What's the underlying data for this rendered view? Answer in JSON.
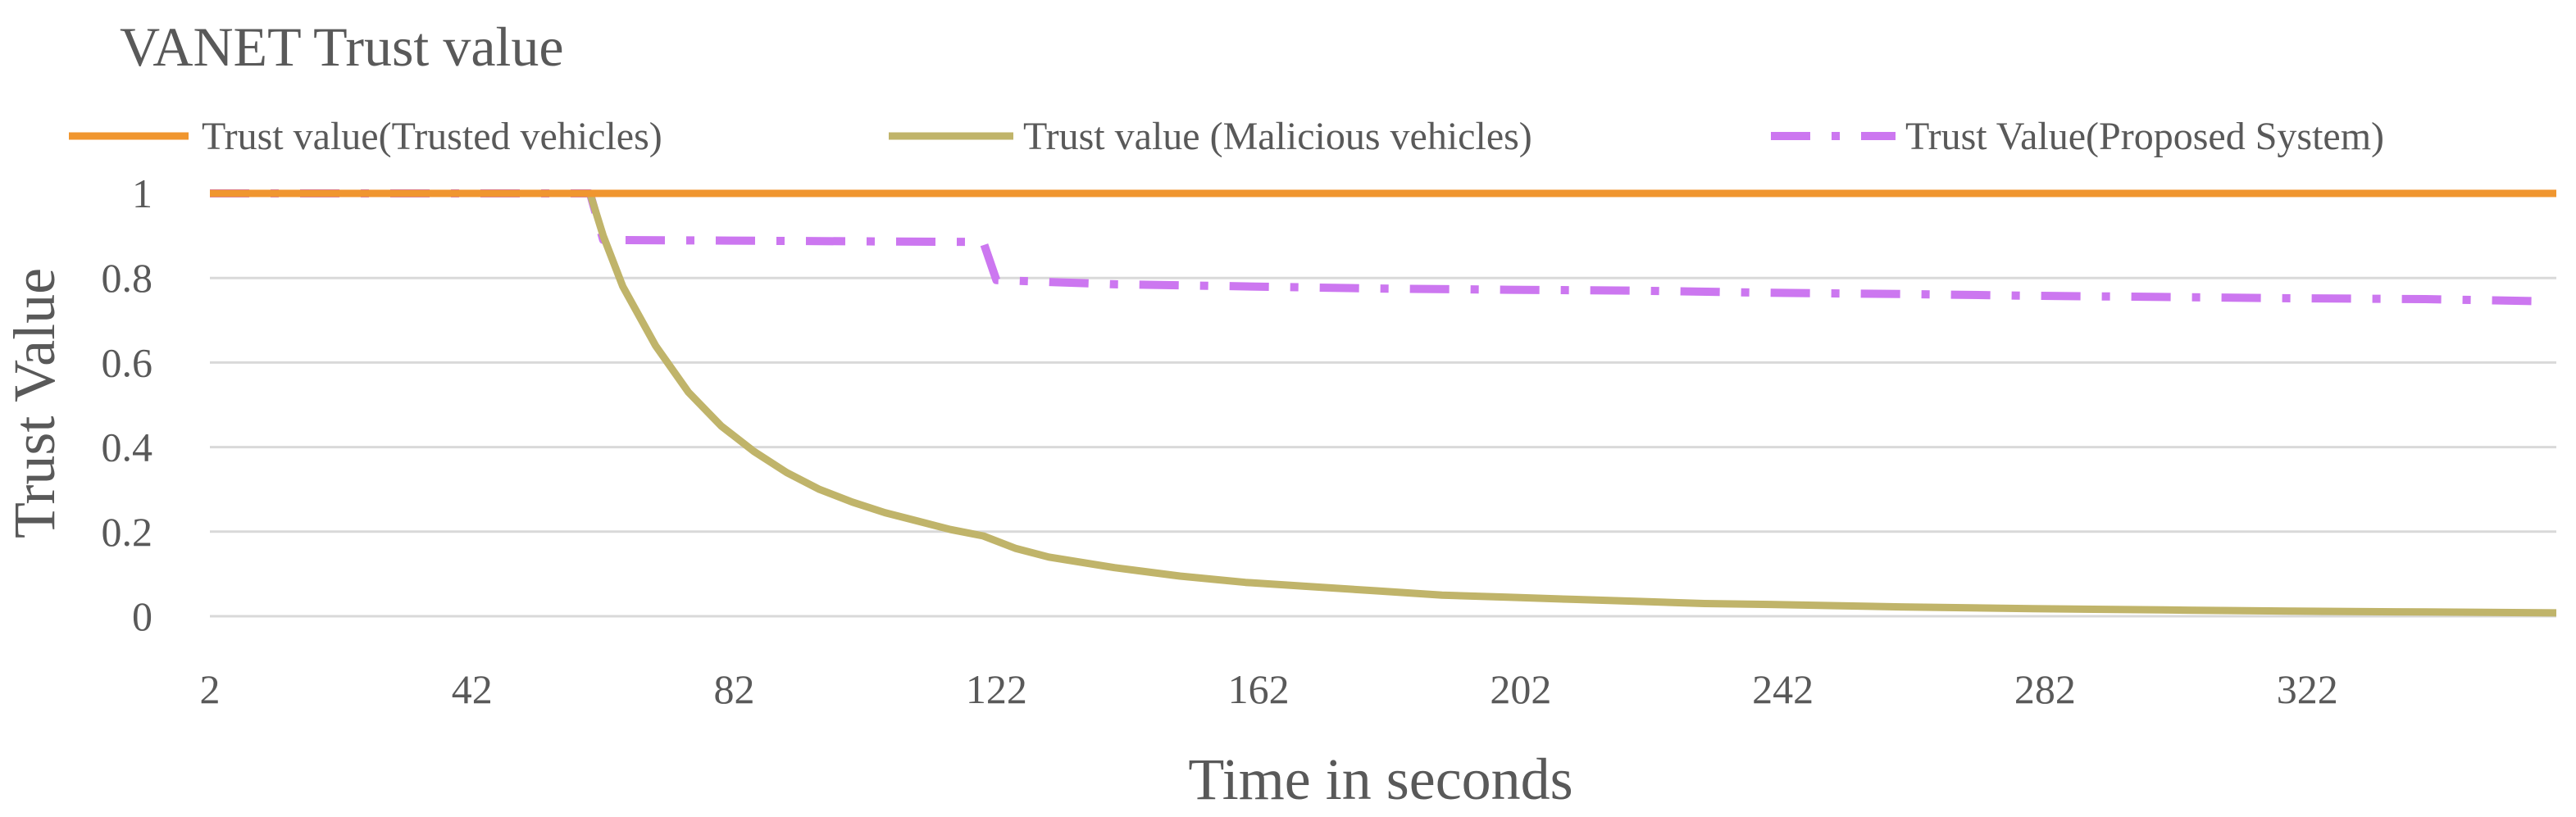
{
  "chart_data": {
    "type": "line",
    "title": "VANET Trust value",
    "xlabel": "Time in seconds",
    "ylabel": "Trust Value",
    "xlim": [
      2,
      360
    ],
    "ylim": [
      0,
      1
    ],
    "x_ticks": [
      "2",
      "42",
      "82",
      "122",
      "162",
      "202",
      "242",
      "282",
      "322"
    ],
    "y_ticks": [
      "0",
      "0.2",
      "0.4",
      "0.6",
      "0.8",
      "1"
    ],
    "grid": true,
    "legend_position": "top",
    "series": [
      {
        "name": "Trust value(Trusted vehicles)",
        "color": "#F0962F",
        "line_style": "solid",
        "x": [
          2,
          360
        ],
        "y": [
          1,
          1
        ]
      },
      {
        "name": "Trust value (Malicious vehicles)",
        "color": "#C0B46A",
        "line_style": "solid",
        "x": [
          2,
          60,
          62,
          65,
          70,
          75,
          80,
          85,
          90,
          95,
          100,
          105,
          110,
          115,
          120,
          125,
          130,
          140,
          150,
          160,
          170,
          180,
          190,
          200,
          210,
          220,
          230,
          240,
          250,
          260,
          280,
          300,
          320,
          340,
          360
        ],
        "y": [
          1,
          1,
          0.9,
          0.78,
          0.64,
          0.53,
          0.45,
          0.39,
          0.34,
          0.3,
          0.27,
          0.245,
          0.225,
          0.205,
          0.19,
          0.16,
          0.14,
          0.115,
          0.095,
          0.08,
          0.07,
          0.06,
          0.05,
          0.045,
          0.04,
          0.035,
          0.03,
          0.028,
          0.025,
          0.022,
          0.018,
          0.015,
          0.012,
          0.01,
          0.008
        ]
      },
      {
        "name": "Trust Value(Proposed System)",
        "color": "#CC77F0",
        "line_style": "dash-dot",
        "x": [
          2,
          60,
          62,
          120,
          122,
          140,
          160,
          180,
          200,
          220,
          240,
          260,
          280,
          300,
          320,
          340,
          358
        ],
        "y": [
          1,
          1,
          0.89,
          0.885,
          0.795,
          0.785,
          0.78,
          0.775,
          0.772,
          0.77,
          0.765,
          0.762,
          0.758,
          0.755,
          0.752,
          0.75,
          0.745
        ]
      }
    ]
  }
}
